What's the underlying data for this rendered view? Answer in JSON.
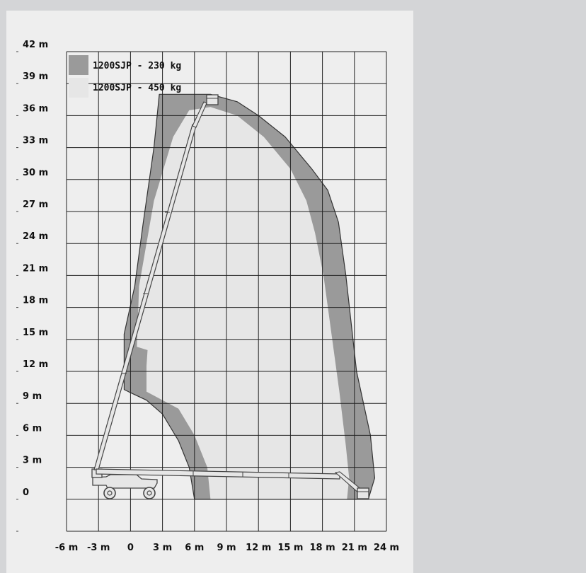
{
  "colors": {
    "background": "#d4d5d7",
    "panel": "#eeeeee",
    "grid": "#222222",
    "envelope_230kg": "#9a9a9a",
    "envelope_450kg": "#e6e6e6",
    "machine": "#e6e6e6",
    "machine_outline": "#444444"
  },
  "chart_data": {
    "type": "area",
    "title": "",
    "xlabel": "",
    "ylabel": "",
    "xlim": [
      -6,
      24
    ],
    "ylim": [
      -3,
      42
    ],
    "x_ticks": [
      -6,
      -3,
      0,
      3,
      6,
      9,
      12,
      15,
      18,
      21,
      24
    ],
    "x_tick_labels": [
      "-6 m",
      "-3 m",
      "0",
      "3 m",
      "6 m",
      "9 m",
      "12 m",
      "15 m",
      "18 m",
      "21 m",
      "24 m"
    ],
    "y_ticks": [
      42,
      39,
      36,
      33,
      30,
      27,
      24,
      21,
      18,
      15,
      12,
      9,
      6,
      3,
      0
    ],
    "y_tick_labels": [
      "42 m",
      "39 m",
      "36 m",
      "33 m",
      "30 m",
      "27 m",
      "24 m",
      "21 m",
      "18 m",
      "15 m",
      "12 m",
      "9 m",
      "6 m",
      "3 m",
      "0"
    ],
    "grid": true,
    "legend_position": "top-left",
    "legend": [
      {
        "label": "1200SJP - 230 kg",
        "color": "#9a9a9a"
      },
      {
        "label": "1200SJP - 450 kg",
        "color": "#e6e6e6"
      }
    ],
    "series": [
      {
        "name": "1200SJP - 230 kg",
        "points": [
          [
            6,
            0
          ],
          [
            5.5,
            3
          ],
          [
            4.5,
            5.5
          ],
          [
            3,
            8
          ],
          [
            1.5,
            9.3
          ],
          [
            0,
            10
          ],
          [
            -0.6,
            10.3
          ],
          [
            -0.6,
            15.5
          ],
          [
            0.4,
            20
          ],
          [
            1.2,
            26
          ],
          [
            2.2,
            33
          ],
          [
            2.7,
            38
          ],
          [
            7.5,
            38
          ],
          [
            10,
            37.3
          ],
          [
            12,
            36
          ],
          [
            14.5,
            34
          ],
          [
            17,
            31
          ],
          [
            18.5,
            29
          ],
          [
            19.5,
            26
          ],
          [
            20.2,
            21
          ],
          [
            21.2,
            12
          ],
          [
            22.5,
            6
          ],
          [
            22.9,
            2
          ],
          [
            22.3,
            0
          ],
          [
            20.8,
            0
          ],
          [
            6,
            0
          ]
        ]
      },
      {
        "name": "1200SJP - 450 kg",
        "points": [
          [
            7.5,
            0
          ],
          [
            7.2,
            3
          ],
          [
            6,
            6
          ],
          [
            4.5,
            8.5
          ],
          [
            1.5,
            10.1
          ],
          [
            1.5,
            12.5
          ],
          [
            1.6,
            14
          ],
          [
            0.6,
            14.3
          ],
          [
            0.8,
            20
          ],
          [
            2.2,
            28
          ],
          [
            4,
            34
          ],
          [
            5.5,
            36.5
          ],
          [
            7.5,
            36.8
          ],
          [
            10,
            36
          ],
          [
            12.5,
            34
          ],
          [
            15,
            31
          ],
          [
            16.5,
            28
          ],
          [
            17.3,
            25
          ],
          [
            18.1,
            21
          ],
          [
            19.6,
            10
          ],
          [
            20.2,
            5
          ],
          [
            20.5,
            2
          ],
          [
            20.3,
            0
          ],
          [
            7.5,
            0
          ]
        ]
      }
    ]
  }
}
